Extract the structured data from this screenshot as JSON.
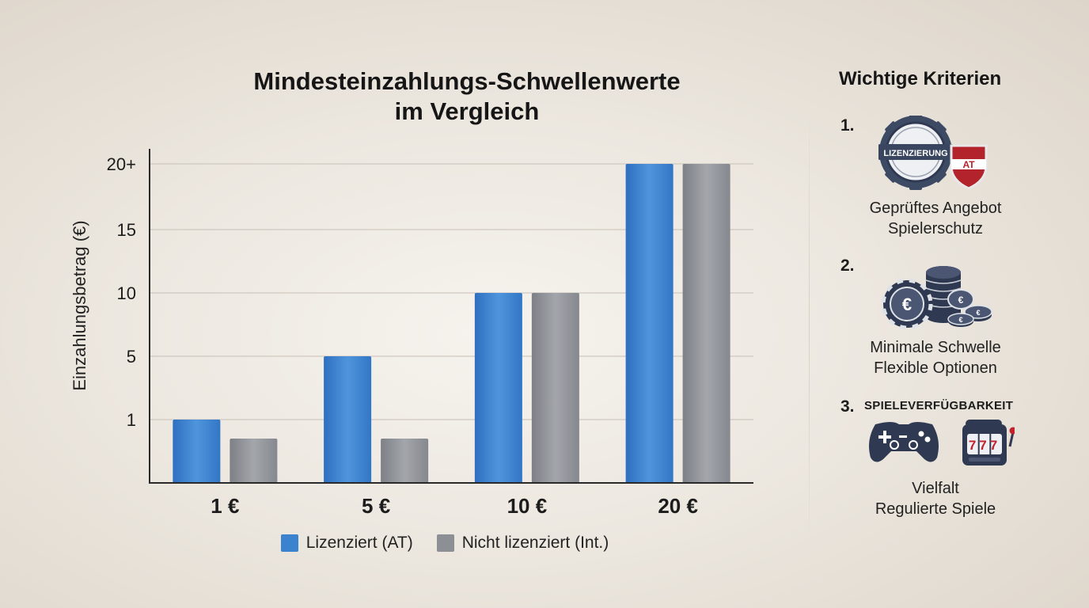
{
  "chart_data": {
    "type": "bar",
    "title": [
      "Mindesteinzahlungs-Schwellenwerte",
      "im Vergleich"
    ],
    "ylabel": "Einzahlungsbetrag (€)",
    "xlabel": "",
    "categories": [
      "1 €",
      "5 €",
      "10 €",
      "20 €"
    ],
    "yticks": [
      {
        "label": "1",
        "value": 1
      },
      {
        "label": "5",
        "value": 5
      },
      {
        "label": "10",
        "value": 10
      },
      {
        "label": "15",
        "value": 15
      },
      {
        "label": "20+",
        "value": 20
      }
    ],
    "ylim": [
      0,
      20
    ],
    "ytick_map": [
      [
        0,
        0
      ],
      [
        1,
        1
      ],
      [
        5,
        2
      ],
      [
        10,
        3
      ],
      [
        15,
        4
      ],
      [
        20,
        5
      ]
    ],
    "grid": true,
    "legend_position": "bottom",
    "series": [
      {
        "name": "Lizenziert (AT)",
        "color": "#3b82cf",
        "values": [
          1,
          5,
          10,
          20
        ]
      },
      {
        "name": "Nicht lizenziert (Int.)",
        "color": "#8c8f94",
        "values": [
          0.7,
          0.7,
          10,
          20
        ]
      }
    ]
  },
  "sidebar": {
    "title": "Wichtige Kriterien",
    "criteria": [
      {
        "number": "1.",
        "icon": "license-badge-icon",
        "badge_text": "LIZENZIERUNG",
        "shield_text": "AT",
        "lines": [
          "Geprüftes Angebot",
          "Spielerschutz"
        ]
      },
      {
        "number": "2.",
        "icon": "euro-coins-icon",
        "lines": [
          "Minimale Schwelle",
          "Flexible Optionen"
        ]
      },
      {
        "number": "3.",
        "heading": "SPIELEVERFÜGBARKEIT",
        "icon": "gamepad-slot-machine-icon",
        "slot_text": "777",
        "lines": [
          "Vielfalt",
          "Regulierte Spiele"
        ]
      }
    ]
  }
}
